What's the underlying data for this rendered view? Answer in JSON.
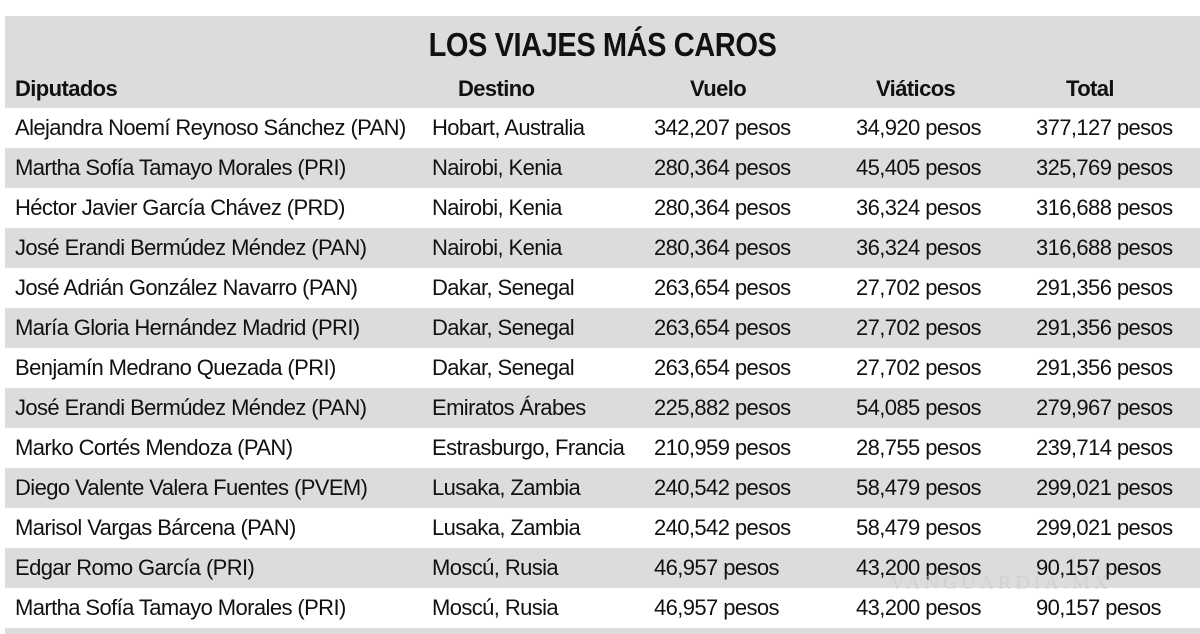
{
  "table": {
    "title": "LOS VIAJES MÁS CAROS",
    "columns": [
      "Diputados",
      "Destino",
      "Vuelo",
      "Viáticos",
      "Total"
    ],
    "rows": [
      [
        "Alejandra Noemí Reynoso Sánchez (PAN)",
        "Hobart, Australia",
        "342,207 pesos",
        "34,920 pesos",
        "377,127 pesos"
      ],
      [
        "Martha Sofía Tamayo Morales (PRI)",
        "Nairobi, Kenia",
        "280,364 pesos",
        "45,405 pesos",
        "325,769 pesos"
      ],
      [
        "Héctor Javier García Chávez (PRD)",
        "Nairobi, Kenia",
        "280,364 pesos",
        "36,324 pesos",
        "316,688 pesos"
      ],
      [
        "José Erandi Bermúdez Méndez (PAN)",
        "Nairobi, Kenia",
        "280,364 pesos",
        "36,324 pesos",
        "316,688 pesos"
      ],
      [
        "José Adrián González Navarro (PAN)",
        "Dakar, Senegal",
        "263,654 pesos",
        "27,702 pesos",
        "291,356 pesos"
      ],
      [
        "María Gloria Hernández Madrid (PRI)",
        "Dakar, Senegal",
        "263,654 pesos",
        "27,702 pesos",
        "291,356 pesos"
      ],
      [
        "Benjamín Medrano Quezada (PRI)",
        "Dakar, Senegal",
        "263,654 pesos",
        "27,702 pesos",
        "291,356 pesos"
      ],
      [
        "José Erandi Bermúdez Méndez (PAN)",
        "Emiratos Árabes",
        "225,882 pesos",
        "54,085 pesos",
        "279,967 pesos"
      ],
      [
        "Marko Cortés Mendoza (PAN)",
        "Estrasburgo, Francia",
        "210,959 pesos",
        "28,755 pesos",
        "239,714 pesos"
      ],
      [
        "Diego Valente Valera Fuentes (PVEM)",
        "Lusaka, Zambia",
        "240,542 pesos",
        "58,479 pesos",
        "299,021 pesos"
      ],
      [
        "Marisol Vargas Bárcena (PAN)",
        "Lusaka, Zambia",
        "240,542 pesos",
        "58,479 pesos",
        "299,021 pesos"
      ],
      [
        "Edgar Romo García (PRI)",
        "Moscú, Rusia",
        "46,957 pesos",
        "43,200 pesos",
        "90,157 pesos"
      ],
      [
        "Martha Sofía Tamayo Morales (PRI)",
        "Moscú, Rusia",
        "46,957 pesos",
        "43,200 pesos",
        "90,157 pesos"
      ]
    ]
  },
  "watermark": "VANGUARDIA.MX",
  "colors": {
    "band_gray": "#dcdcdc",
    "text": "#111111"
  }
}
